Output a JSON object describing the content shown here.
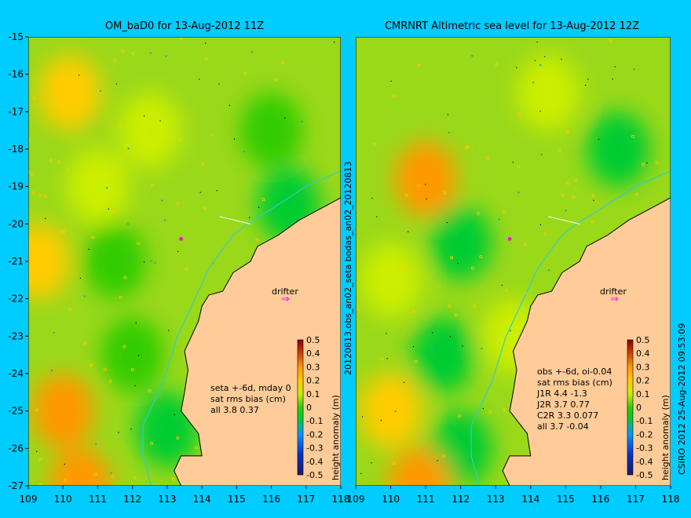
{
  "chart_data": [
    {
      "type": "heatmap",
      "title": "OM_baD0 for 13-Aug-2012 11Z",
      "xlim": [
        109,
        118
      ],
      "ylim": [
        -27,
        -15
      ],
      "xticks": [
        "109",
        "110",
        "111",
        "112",
        "113",
        "114",
        "115",
        "116",
        "117",
        "118"
      ],
      "yticks": [
        "-15",
        "-16",
        "-17",
        "-18",
        "-19",
        "-20",
        "-21",
        "-22",
        "-23",
        "-24",
        "-25",
        "-26",
        "-27"
      ],
      "annotation": [
        "seta +-6d, mday 0",
        "sat rms bias (cm)",
        "all 3.8 0.37"
      ],
      "drifter_label": "drifter",
      "drifter_point": [
        116.5,
        -22.4
      ],
      "anomaly_blobs": [
        {
          "lon": 110.0,
          "lat": -25.0,
          "v": 0.25
        },
        {
          "lon": 109.3,
          "lat": -21.0,
          "v": 0.15
        },
        {
          "lon": 111.0,
          "lat": -19.0,
          "v": 0.1
        },
        {
          "lon": 110.2,
          "lat": -16.5,
          "v": 0.15
        },
        {
          "lon": 112.5,
          "lat": -17.5,
          "v": 0.1
        },
        {
          "lon": 111.5,
          "lat": -21.0,
          "v": -0.05
        },
        {
          "lon": 112.0,
          "lat": -23.5,
          "v": -0.05
        },
        {
          "lon": 113.0,
          "lat": -25.5,
          "v": -0.1
        },
        {
          "lon": 116.0,
          "lat": -17.5,
          "v": -0.05
        },
        {
          "lon": 116.5,
          "lat": -19.5,
          "v": -0.1
        },
        {
          "lon": 110.5,
          "lat": -27.0,
          "v": 0.25
        }
      ]
    },
    {
      "type": "heatmap",
      "title": "CMRNRT Altimetric sea level  for 13-Aug-2012 12Z",
      "xlim": [
        109,
        118
      ],
      "ylim": [
        -27,
        -15
      ],
      "xticks": [
        "109",
        "110",
        "111",
        "112",
        "113",
        "114",
        "115",
        "116",
        "117",
        "118"
      ],
      "yticks": [],
      "annotation": [
        "obs +-6d, oi-0.04",
        "sat rms bias (cm)",
        "J1R   4.4  -1.3",
        "J2R   3.7  0.77",
        "C2R   3.3  0.077",
        "all  3.7  -0.04"
      ],
      "drifter_label": "drifter",
      "drifter_point": [
        116.5,
        -22.4
      ],
      "anomaly_blobs": [
        {
          "lon": 110.0,
          "lat": -25.0,
          "v": 0.15
        },
        {
          "lon": 111.0,
          "lat": -18.8,
          "v": 0.25
        },
        {
          "lon": 112.0,
          "lat": -20.5,
          "v": -0.1
        },
        {
          "lon": 111.5,
          "lat": -23.5,
          "v": -0.12
        },
        {
          "lon": 110.0,
          "lat": -21.5,
          "v": 0.1
        },
        {
          "lon": 116.5,
          "lat": -18.0,
          "v": -0.12
        },
        {
          "lon": 112.0,
          "lat": -26.0,
          "v": -0.08
        },
        {
          "lon": 110.8,
          "lat": -27.0,
          "v": 0.25
        },
        {
          "lon": 114.5,
          "lat": -16.5,
          "v": 0.1
        },
        {
          "lon": 113.5,
          "lat": -23.0,
          "v": 0.05
        }
      ]
    }
  ],
  "colorbar": {
    "label": "height anomaly (m)",
    "ticks": [
      "0.5",
      "0.4",
      "0.3",
      "0.2",
      "0.1",
      "0",
      "-0.1",
      "-0.2",
      "-0.3",
      "-0.4",
      "-0.5"
    ],
    "range": [
      -0.5,
      0.5
    ]
  },
  "side_labels": {
    "middle": "20120813.obs_an02_seta      bodas_an02_20120813",
    "right": "CSIRO 2012   25-Aug-2012 09:53:09"
  },
  "colors": {
    "background": "#00ccff",
    "land": "#ffcc99",
    "coast": "#000000",
    "isobath": "#33cccc",
    "drifter": "#ff00ff"
  }
}
